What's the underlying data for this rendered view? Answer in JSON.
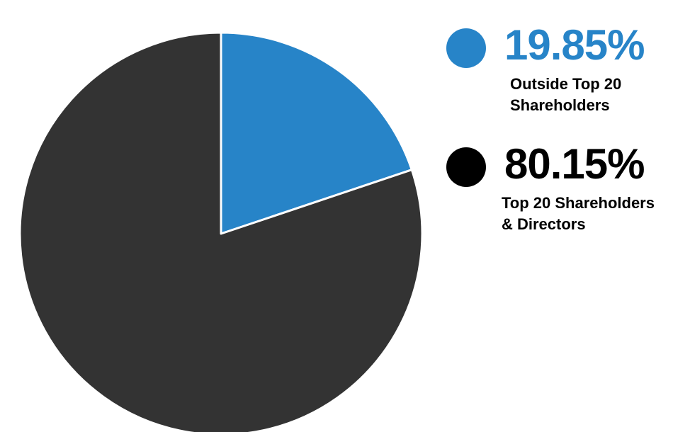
{
  "chart_data": {
    "type": "pie",
    "slices": [
      {
        "value": 19.85,
        "value_label": "19.85%",
        "label_lines": [
          "Outside Top 20",
          "Shareholders"
        ],
        "color": "#2784c8",
        "label_color": "#2784c8",
        "dot_color": "#2784c8"
      },
      {
        "value": 80.15,
        "value_label": "80.15%",
        "label_lines": [
          "Top 20 Shareholders",
          "& Directors"
        ],
        "color": "#333333",
        "label_color": "#000000",
        "dot_color": "#000000"
      }
    ],
    "legend_position": "right"
  }
}
